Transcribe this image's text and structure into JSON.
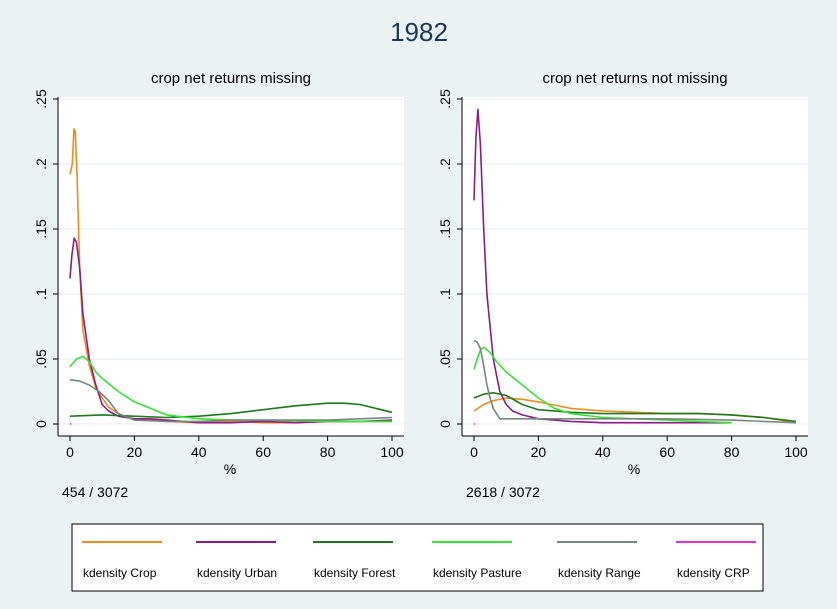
{
  "figure": {
    "title": "1982"
  },
  "chart_data": [
    {
      "type": "line",
      "title": "crop net returns missing",
      "xlabel": "%",
      "ylabel": "",
      "xlim": [
        0,
        100
      ],
      "ylim": [
        0,
        0.25
      ],
      "x_ticks": [
        "0",
        "20",
        "40",
        "60",
        "80",
        "100"
      ],
      "y_ticks": [
        "0",
        ".05",
        ".1",
        ".15",
        ".2",
        ".25"
      ],
      "grid": true,
      "count_note": "454 / 3072",
      "series": [
        {
          "name": "kdensity Crop",
          "color": "#f28a1d",
          "x": [
            0,
            0.7,
            1.2,
            1.6,
            2.2,
            3,
            4,
            6,
            8,
            10,
            12,
            15,
            18,
            20,
            25,
            30,
            40,
            50,
            60,
            70,
            80,
            90,
            100
          ],
          "y": [
            0.192,
            0.2,
            0.227,
            0.225,
            0.19,
            0.12,
            0.072,
            0.045,
            0.028,
            0.02,
            0.013,
            0.008,
            0.005,
            0.004,
            0.003,
            0.002,
            0.001,
            0.002,
            0.001,
            0.001,
            0.002,
            0.002,
            0.002
          ]
        },
        {
          "name": "kdensity Urban",
          "color": "#8a1d86",
          "x": [
            0,
            0.6,
            1.3,
            2,
            3,
            4,
            6,
            8,
            10,
            12,
            15,
            20,
            25,
            30,
            40,
            50,
            60,
            70,
            80,
            90,
            100
          ],
          "y": [
            0.112,
            0.13,
            0.143,
            0.14,
            0.12,
            0.085,
            0.05,
            0.03,
            0.015,
            0.01,
            0.006,
            0.004,
            0.004,
            0.003,
            0.001,
            0.001,
            0.002,
            0.001,
            0.002,
            0.002,
            0.003
          ]
        },
        {
          "name": "kdensity Forest",
          "color": "#1f7a1f",
          "x": [
            0,
            10,
            20,
            30,
            40,
            50,
            60,
            70,
            80,
            85,
            90,
            100
          ],
          "y": [
            0.006,
            0.007,
            0.006,
            0.005,
            0.006,
            0.008,
            0.011,
            0.014,
            0.016,
            0.016,
            0.015,
            0.009
          ]
        },
        {
          "name": "kdensity Pasture",
          "color": "#33e633",
          "x": [
            0,
            2,
            4,
            6,
            8,
            10,
            15,
            20,
            25,
            30,
            40,
            50,
            60,
            80,
            100
          ],
          "y": [
            0.044,
            0.05,
            0.052,
            0.048,
            0.04,
            0.035,
            0.025,
            0.017,
            0.012,
            0.007,
            0.004,
            0.003,
            0.003,
            0.002,
            0.002
          ]
        },
        {
          "name": "kdensity Range",
          "color": "#78877f",
          "x": [
            0,
            3,
            6,
            9,
            12,
            15,
            20,
            30,
            40,
            50,
            60,
            70,
            80,
            90,
            100
          ],
          "y": [
            0.034,
            0.033,
            0.03,
            0.025,
            0.018,
            0.008,
            0.003,
            0.002,
            0.002,
            0.003,
            0.003,
            0.003,
            0.003,
            0.004,
            0.005
          ]
        },
        {
          "name": "kdensity CRP",
          "color": "#e62ee6",
          "x": [
            0,
            0.4
          ],
          "y": [
            0,
            0
          ]
        }
      ]
    },
    {
      "type": "line",
      "title": "crop net returns not missing",
      "xlabel": "%",
      "ylabel": "",
      "xlim": [
        0,
        100
      ],
      "ylim": [
        0,
        0.25
      ],
      "x_ticks": [
        "0",
        "20",
        "40",
        "60",
        "80",
        "100"
      ],
      "y_ticks": [
        "0",
        ".05",
        ".1",
        ".15",
        ".2",
        ".25"
      ],
      "grid": true,
      "count_note": "2618 / 3072",
      "series": [
        {
          "name": "kdensity Crop",
          "color": "#f28a1d",
          "x": [
            0,
            3,
            6,
            10,
            15,
            20,
            30,
            40,
            50,
            60,
            70,
            80,
            90,
            98
          ],
          "y": [
            0.01,
            0.015,
            0.018,
            0.02,
            0.019,
            0.017,
            0.012,
            0.01,
            0.009,
            0.008,
            0.008,
            0.007,
            0.005,
            0.002
          ]
        },
        {
          "name": "kdensity Urban",
          "color": "#8a1d86",
          "x": [
            0,
            0.6,
            1.2,
            2,
            3,
            4,
            6,
            8,
            10,
            12,
            15,
            20,
            25,
            30,
            40,
            50,
            60,
            70,
            80
          ],
          "y": [
            0.172,
            0.22,
            0.242,
            0.215,
            0.15,
            0.1,
            0.05,
            0.025,
            0.015,
            0.01,
            0.007,
            0.004,
            0.003,
            0.002,
            0.001,
            0.001,
            0.001,
            0.001,
            0.001
          ]
        },
        {
          "name": "kdensity Forest",
          "color": "#1f7a1f",
          "x": [
            0,
            3,
            6,
            10,
            15,
            20,
            30,
            40,
            50,
            60,
            70,
            80,
            90,
            100
          ],
          "y": [
            0.02,
            0.023,
            0.024,
            0.022,
            0.015,
            0.011,
            0.009,
            0.008,
            0.008,
            0.008,
            0.008,
            0.007,
            0.005,
            0.002
          ]
        },
        {
          "name": "kdensity Pasture",
          "color": "#33e633",
          "x": [
            0,
            1,
            2,
            3,
            5,
            7,
            10,
            15,
            20,
            25,
            30,
            40,
            50,
            60,
            70,
            80
          ],
          "y": [
            0.042,
            0.05,
            0.057,
            0.059,
            0.055,
            0.048,
            0.04,
            0.03,
            0.02,
            0.012,
            0.008,
            0.005,
            0.004,
            0.003,
            0.002,
            0.001
          ]
        },
        {
          "name": "kdensity Range",
          "color": "#78877f",
          "x": [
            0,
            1,
            2,
            3,
            4,
            5,
            6,
            8,
            10,
            20,
            40,
            60,
            80,
            90,
            100
          ],
          "y": [
            0.064,
            0.063,
            0.058,
            0.045,
            0.03,
            0.02,
            0.012,
            0.004,
            0.004,
            0.004,
            0.004,
            0.004,
            0.003,
            0.002,
            0.001
          ]
        },
        {
          "name": "kdensity CRP",
          "color": "#e62ee6",
          "x": [
            0,
            0.4
          ],
          "y": [
            0,
            0
          ]
        }
      ]
    }
  ],
  "legend": {
    "placement": "bottom",
    "items": [
      {
        "label": "kdensity Crop",
        "color": "#f28a1d"
      },
      {
        "label": "kdensity Urban",
        "color": "#8a1d86"
      },
      {
        "label": "kdensity Forest",
        "color": "#1f7a1f"
      },
      {
        "label": "kdensity Pasture",
        "color": "#33e633"
      },
      {
        "label": "kdensity Range",
        "color": "#78877f"
      },
      {
        "label": "kdensity CRP",
        "color": "#e62ee6"
      }
    ]
  }
}
